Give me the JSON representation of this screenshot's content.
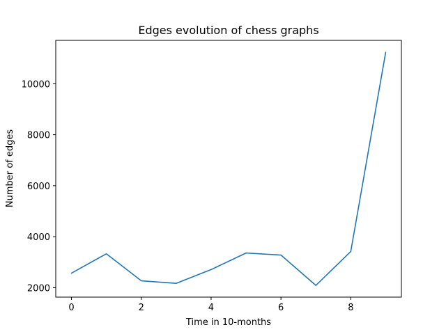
{
  "chart_data": {
    "type": "line",
    "title": "Edges evolution of chess graphs",
    "xlabel": "Time in 10-months",
    "ylabel": "Number of edges",
    "x": [
      0,
      1,
      2,
      3,
      4,
      5,
      6,
      7,
      8,
      9
    ],
    "series": [
      {
        "values": [
          2570,
          3330,
          2270,
          2170,
          2710,
          3360,
          3280,
          2090,
          3420,
          11230
        ],
        "color": "#1f77b4"
      }
    ],
    "xlim": [
      -0.45,
      9.45
    ],
    "ylim": [
      1630,
      11700
    ],
    "xticks": [
      0,
      2,
      4,
      6,
      8
    ],
    "yticks": [
      2000,
      4000,
      6000,
      8000,
      10000
    ],
    "xtick_labels": [
      "0",
      "2",
      "4",
      "6",
      "8"
    ],
    "ytick_labels": [
      "2000",
      "4000",
      "6000",
      "8000",
      "10000"
    ],
    "grid": false,
    "legend": "none"
  }
}
